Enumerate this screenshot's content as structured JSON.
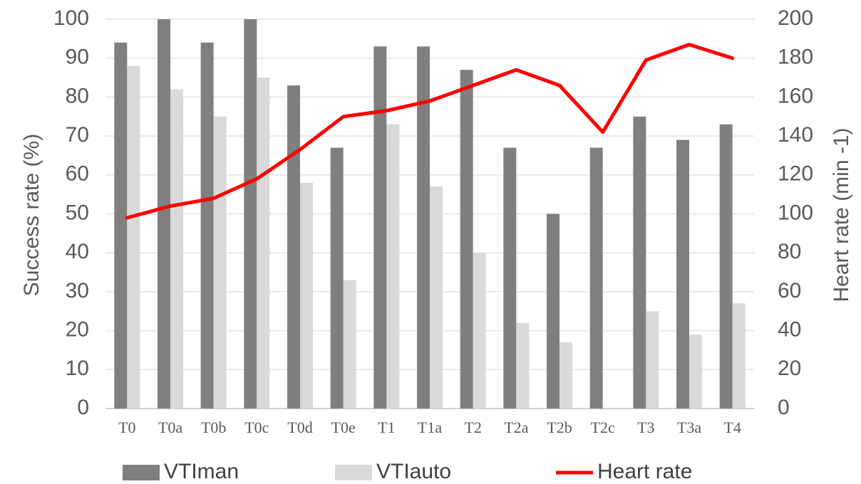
{
  "chart_data": {
    "type": "bar",
    "categories": [
      "T0",
      "T0a",
      "T0b",
      "T0c",
      "T0d",
      "T0e",
      "T1",
      "T1a",
      "T2",
      "T2a",
      "T2b",
      "T2c",
      "T3",
      "T3a",
      "T4"
    ],
    "series": [
      {
        "name": "VTIman",
        "type": "bar",
        "axis": "left",
        "color": "#7f7f7f",
        "values": [
          94,
          100,
          94,
          100,
          83,
          67,
          93,
          93,
          87,
          67,
          50,
          67,
          75,
          69,
          73
        ]
      },
      {
        "name": "VTIauto",
        "type": "bar",
        "axis": "left",
        "color": "#d9d9d9",
        "values": [
          88,
          82,
          75,
          85,
          58,
          33,
          73,
          57,
          40,
          22,
          17,
          0,
          25,
          19,
          27
        ]
      },
      {
        "name": "Heart rate",
        "type": "line",
        "axis": "right",
        "color": "#ff0000",
        "values": [
          98,
          104,
          108,
          118,
          133,
          150,
          153,
          158,
          166,
          174,
          166,
          142,
          179,
          187,
          180
        ]
      }
    ],
    "ylabel": "Success rate (%)",
    "y2label": "Heart rate  (min -1)",
    "ylim": [
      0,
      100
    ],
    "y2lim": [
      0,
      200
    ],
    "yticks": [
      "0",
      "10",
      "20",
      "30",
      "40",
      "50",
      "60",
      "70",
      "80",
      "90",
      "100"
    ],
    "y2ticks": [
      "0",
      "20",
      "40",
      "60",
      "80",
      "100",
      "120",
      "140",
      "160",
      "180",
      "200"
    ],
    "grid": true,
    "legend_position": "bottom"
  }
}
